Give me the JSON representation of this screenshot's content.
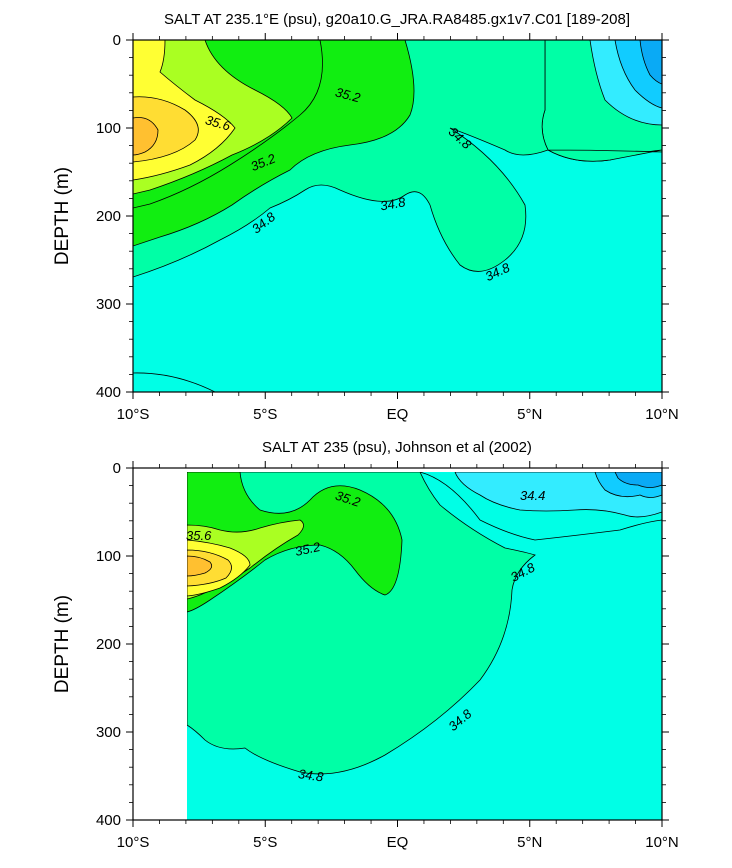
{
  "chart_data": [
    {
      "type": "contour",
      "title": "SALT AT 235.1°E (psu), g20a10.G_JRA.RA8485.gx1v7.C01 [189-208]",
      "ylabel": "DEPTH (m)",
      "xlabel": "",
      "x_ticks": [
        {
          "value": -10,
          "label": "10°S"
        },
        {
          "value": -5,
          "label": "5°S"
        },
        {
          "value": 0,
          "label": "EQ"
        },
        {
          "value": 5,
          "label": "5°N"
        },
        {
          "value": 10,
          "label": "10°N"
        }
      ],
      "y_ticks": [
        0,
        100,
        200,
        300,
        400
      ],
      "xlim": [
        -10,
        10
      ],
      "ylim": [
        400,
        0
      ],
      "contour_labels": [
        "35.6",
        "35.2",
        "35.2",
        "34.8",
        "34.8",
        "34.8",
        "34.8"
      ],
      "notes": "Salinity section; high salinity (yellow/orange) core near 10°S at ~110 m, fresh (blue) surface water at 8-10°N."
    },
    {
      "type": "contour",
      "title": "SALT AT 235 (psu), Johnson et al (2002)",
      "ylabel": "DEPTH (m)",
      "xlabel": "",
      "x_ticks": [
        {
          "value": -10,
          "label": "10°S"
        },
        {
          "value": -5,
          "label": "5°S"
        },
        {
          "value": 0,
          "label": "EQ"
        },
        {
          "value": 5,
          "label": "5°N"
        },
        {
          "value": 10,
          "label": "10°N"
        }
      ],
      "y_ticks": [
        0,
        100,
        200,
        300,
        400
      ],
      "xlim": [
        -10,
        10
      ],
      "ylim": [
        400,
        0
      ],
      "data_xlim": [
        -8,
        10
      ],
      "data_ylim": [
        0,
        400
      ],
      "contour_labels": [
        "35.6",
        "35.2",
        "35.2",
        "34.4",
        "34.8",
        "34.8",
        "34.8"
      ],
      "notes": "Observed section; no data south of 8°S."
    }
  ],
  "colors": {
    "orange": "#ffc030",
    "gold": "#ffdd33",
    "yellow": "#ffff33",
    "yellowgreen": "#aaff22",
    "green": "#11ee11",
    "seagreen": "#00ffa6",
    "cyan": "#00ffe6",
    "lightblue": "#33ecff",
    "skyblue": "#11ccff",
    "blue": "#0aaaf5"
  }
}
